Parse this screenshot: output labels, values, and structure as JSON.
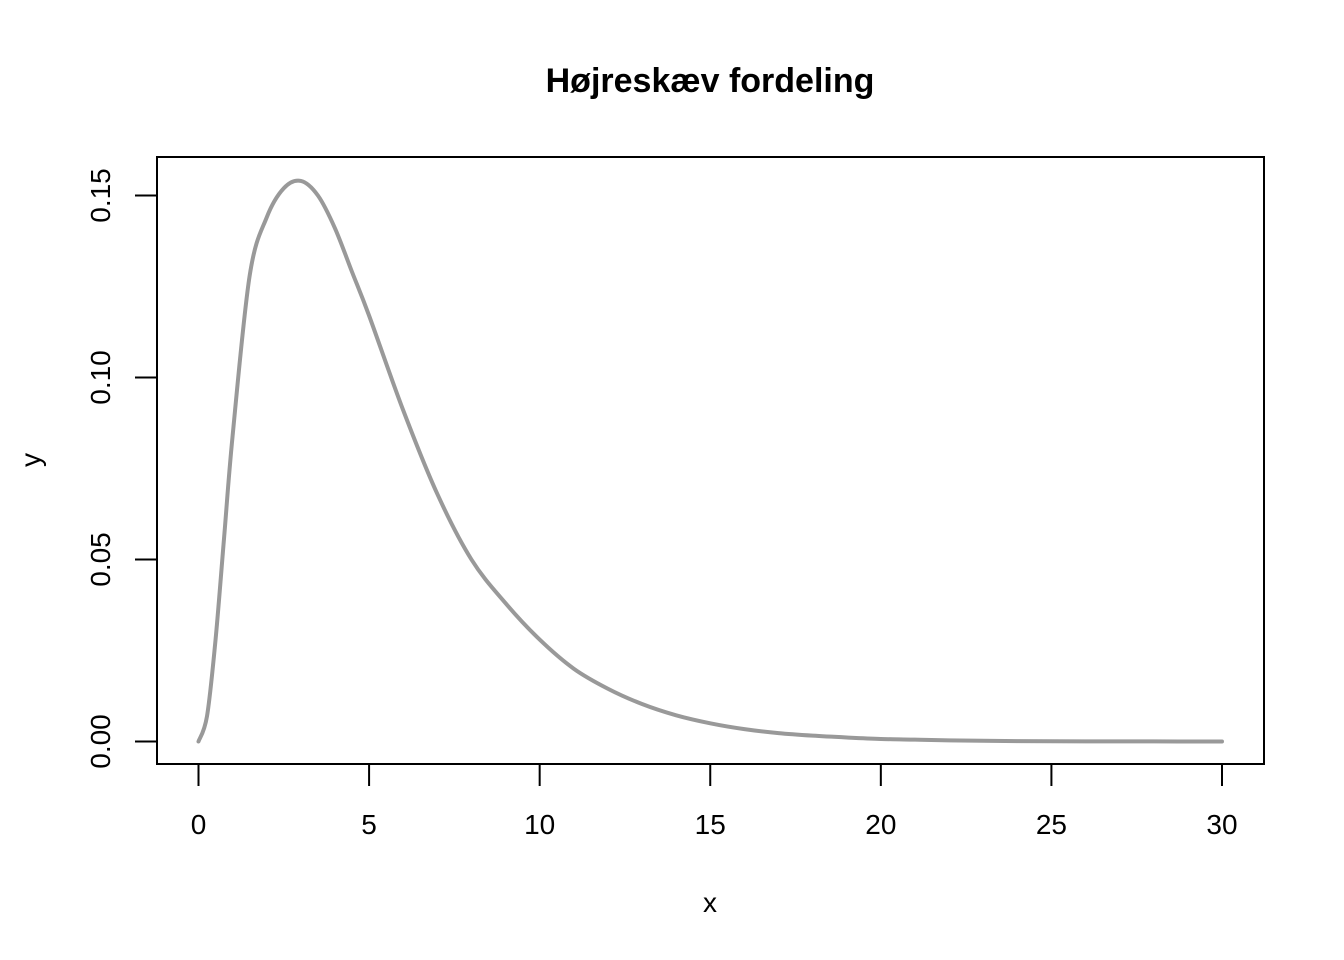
{
  "chart_data": {
    "type": "line",
    "title": "Højreskæv fordeling",
    "xlabel": "x",
    "ylabel": "y",
    "xlim": [
      0,
      30
    ],
    "ylim": [
      0,
      0.155
    ],
    "x_ticks": [
      0,
      5,
      10,
      15,
      20,
      25,
      30
    ],
    "x_tick_labels": [
      "0",
      "5",
      "10",
      "15",
      "20",
      "25",
      "30"
    ],
    "y_ticks": [
      0,
      0.05,
      0.1,
      0.15
    ],
    "y_tick_labels": [
      "0.00",
      "0.05",
      "0.10",
      "0.15"
    ],
    "grid": false,
    "legend": "none",
    "line_color": "#999999",
    "series": [
      {
        "x": [
          0,
          0.25,
          0.5,
          0.75,
          1,
          1.5,
          2,
          2.5,
          3,
          3.5,
          4,
          4.5,
          5,
          6,
          7,
          8,
          9,
          10,
          11,
          12,
          13,
          14,
          15,
          16,
          17,
          18,
          19,
          20,
          21,
          22,
          24,
          26,
          28,
          30
        ],
        "y": [
          0,
          0.007,
          0.028,
          0.056,
          0.084,
          0.128,
          0.144,
          0.152,
          0.154,
          0.15,
          0.141,
          0.129,
          0.117,
          0.091,
          0.068,
          0.05,
          0.038,
          0.028,
          0.02,
          0.0145,
          0.0103,
          0.0072,
          0.005,
          0.0034,
          0.0023,
          0.0016,
          0.0011,
          0.0007,
          0.0005,
          0.0003,
          0.0001,
          5e-05,
          2e-05,
          1e-05
        ]
      }
    ]
  }
}
